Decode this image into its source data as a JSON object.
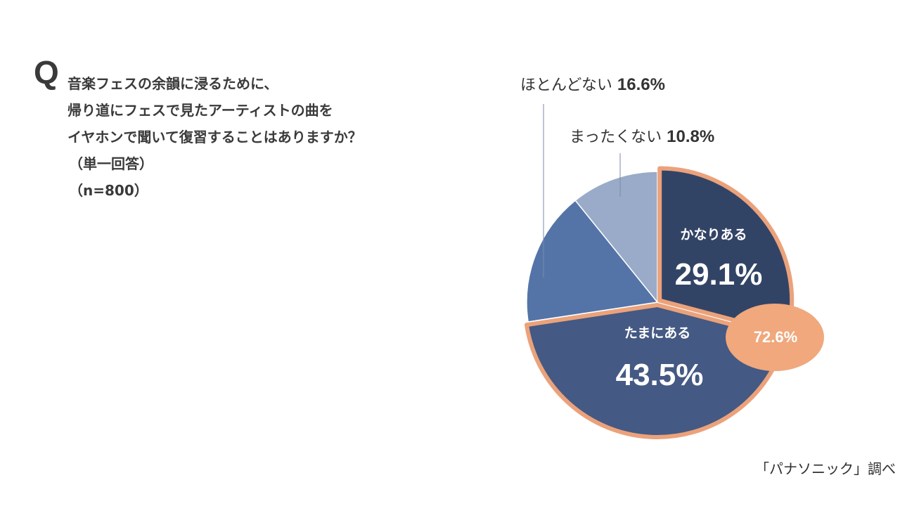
{
  "question": {
    "mark": "Q",
    "lines": [
      "音楽フェスの余韻に浸るために、",
      "帰り道にフェスで見たアーティストの曲を",
      "イヤホンで聞いて復習することはありますか？"
    ],
    "note": "（単一回答）",
    "n": "（n=800）"
  },
  "source": "「パナソニック」調べ",
  "chart_data": {
    "type": "pie",
    "unit": "%",
    "slices": [
      {
        "label": "かなりある",
        "value": 29.1,
        "value_label": "29.1%",
        "color": "#324466",
        "highlight": true
      },
      {
        "label": "たまにある",
        "value": 43.5,
        "value_label": "43.5%",
        "color": "#445983",
        "highlight": true
      },
      {
        "label": "ほとんどない",
        "value": 16.6,
        "value_label": "16.6%",
        "color": "#5474a8",
        "highlight": false
      },
      {
        "label": "まったくない",
        "value": 10.8,
        "value_label": "10.8%",
        "color": "#99abc8",
        "highlight": false
      }
    ],
    "combined": {
      "label": "72.6%",
      "of": [
        "かなりある",
        "たまにある"
      ],
      "color": "#f0a87c"
    },
    "highlight_color": "#eba27b"
  }
}
